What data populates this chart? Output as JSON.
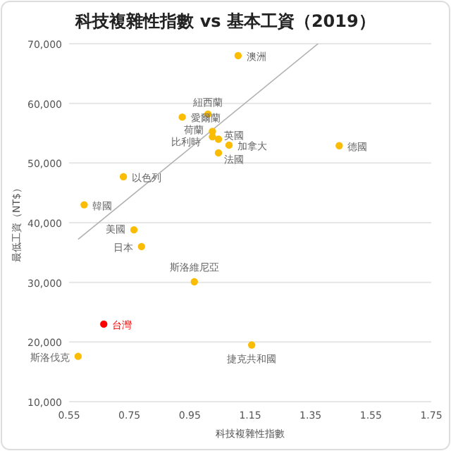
{
  "chart_data": {
    "type": "scatter",
    "title": "科技複雜性指數 vs 基本工資（2019）",
    "xlabel": "科技複雜性指數",
    "ylabel": "最低工資（NT$）",
    "xlim": [
      0.55,
      1.75
    ],
    "xticks": [
      0.55,
      0.75,
      0.95,
      1.15,
      1.35,
      1.55,
      1.75
    ],
    "ylim": [
      10000,
      70000
    ],
    "yticks": [
      {
        "value": 10000,
        "label": "10,000"
      },
      {
        "value": 20000,
        "label": "20,000"
      },
      {
        "value": 30000,
        "label": "30,000"
      },
      {
        "value": 40000,
        "label": "40,000"
      },
      {
        "value": 50000,
        "label": "50,000"
      },
      {
        "value": 60000,
        "label": "60,000"
      },
      {
        "value": 70000,
        "label": "70,000"
      }
    ],
    "grid": "y",
    "series": [
      {
        "marker": "circle",
        "x": [
          1.11,
          1.01,
          0.925,
          1.025,
          1.025,
          1.045,
          1.08,
          1.045,
          1.445,
          0.73,
          0.6,
          0.765,
          0.79,
          0.965,
          0.665,
          1.155,
          0.58
        ],
        "values": [
          68000,
          58200,
          57700,
          55300,
          54400,
          54000,
          53000,
          51700,
          52900,
          47700,
          43000,
          38800,
          36000,
          30100,
          23000,
          19500,
          17600
        ],
        "colors": [
          "#fbbc04",
          "#fbbc04",
          "#fbbc04",
          "#fbbc04",
          "#fbbc04",
          "#fbbc04",
          "#fbbc04",
          "#fbbc04",
          "#fbbc04",
          "#fbbc04",
          "#fbbc04",
          "#fbbc04",
          "#fbbc04",
          "#fbbc04",
          "#ff0000",
          "#fbbc04",
          "#fbbc04"
        ]
      },
      {
        "type": "line",
        "marker": "none",
        "color": "#b0b0b0",
        "x": [
          0.58,
          1.375
        ],
        "values": [
          37200,
          70000
        ]
      }
    ],
    "annotations": [
      {
        "text": "澳洲",
        "x": 1.11,
        "y": 68000
      },
      {
        "text": "紐西蘭",
        "x": 1.01,
        "y": 58200
      },
      {
        "text": "愛爾蘭",
        "x": 0.925,
        "y": 57700
      },
      {
        "text": "荷蘭",
        "x": 1.025,
        "y": 55300
      },
      {
        "text": "比利時",
        "x": 1.025,
        "y": 54400
      },
      {
        "text": "英國",
        "x": 1.045,
        "y": 54000
      },
      {
        "text": "加拿大",
        "x": 1.08,
        "y": 53000
      },
      {
        "text": "法國",
        "x": 1.045,
        "y": 51700
      },
      {
        "text": "德國",
        "x": 1.445,
        "y": 52900
      },
      {
        "text": "以色列",
        "x": 0.73,
        "y": 47700
      },
      {
        "text": "韓國",
        "x": 0.6,
        "y": 43000
      },
      {
        "text": "美國",
        "x": 0.765,
        "y": 38800
      },
      {
        "text": "日本",
        "x": 0.79,
        "y": 36000
      },
      {
        "text": "斯洛維尼亞",
        "x": 0.965,
        "y": 30100
      },
      {
        "text": "台灣",
        "x": 0.665,
        "y": 23000
      },
      {
        "text": "捷克共和國",
        "x": 1.155,
        "y": 19500
      },
      {
        "text": "斯洛伐克",
        "x": 0.58,
        "y": 17600
      }
    ]
  }
}
